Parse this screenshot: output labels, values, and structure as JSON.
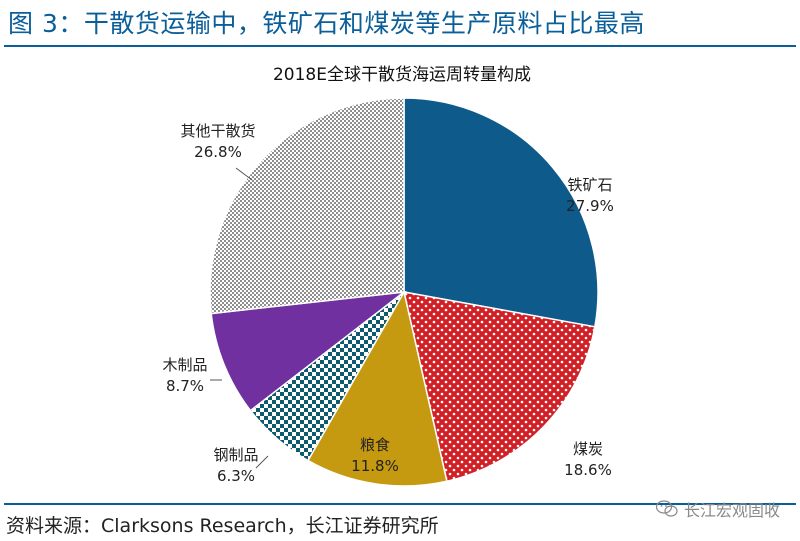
{
  "figure_title": "图 3：干散货运输中，铁矿石和煤炭等生产原料占比最高",
  "source": "资料来源：Clarksons Research，长江证券研究所",
  "watermark": "长江宏观固收",
  "colors": {
    "accent": "#0a5e9a",
    "iron_ore": "#0e5a8a",
    "coal": "#d22027",
    "grain": "#c59a10",
    "steel": "#0e5a6e",
    "wood": "#7030a0",
    "other": "#9a9a9a"
  },
  "chart_data": {
    "type": "pie",
    "title": "2018E全球干散货海运周转量构成",
    "slices": [
      {
        "name": "铁矿石",
        "value": 27.9,
        "label": "27.9%",
        "color": "#0e5a8a",
        "pattern": "solid"
      },
      {
        "name": "煤炭",
        "value": 18.6,
        "label": "18.6%",
        "color": "#d22027",
        "pattern": "dots"
      },
      {
        "name": "粮食",
        "value": 11.8,
        "label": "11.8%",
        "color": "#c59a10",
        "pattern": "solid"
      },
      {
        "name": "钢制品",
        "value": 6.3,
        "label": "6.3%",
        "color": "#0e5a6e",
        "pattern": "checker"
      },
      {
        "name": "木制品",
        "value": 8.7,
        "label": "8.7%",
        "color": "#7030a0",
        "pattern": "solid"
      },
      {
        "name": "其他干散货",
        "value": 26.8,
        "label": "26.8%",
        "color": "#9a9a9a",
        "pattern": "fine-checker"
      }
    ]
  }
}
